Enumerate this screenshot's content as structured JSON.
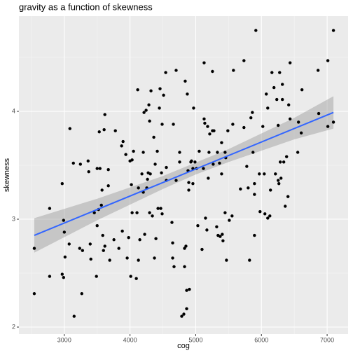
{
  "chart_data": {
    "type": "scatter",
    "title": "gravity as a function of skewness",
    "x_label": "cog",
    "y_label": "skewness",
    "xlim": [
      2309,
      7319
    ],
    "ylim": [
      1.935,
      4.883
    ],
    "xticks": [
      3000,
      4000,
      5000,
      6000,
      7000
    ],
    "yticks": [
      2,
      3,
      4
    ],
    "grid": true,
    "point_color": "#000000",
    "fit": {
      "color": "#3366FF",
      "x": [
        2543,
        7096
      ],
      "y": [
        2.85,
        3.99
      ]
    },
    "band": {
      "color": "#999999",
      "x": [
        2543,
        3500,
        4500,
        5000,
        5500,
        6500,
        7096
      ],
      "lower": [
        2.69,
        2.99,
        3.28,
        3.415,
        3.53,
        3.74,
        3.84
      ],
      "upper": [
        3.01,
        3.19,
        3.4,
        3.525,
        3.65,
        3.94,
        4.14
      ]
    },
    "x": [
      2543,
      2543,
      2777,
      2777,
      2968,
      2989,
      2989,
      3000,
      2968,
      3011,
      3085,
      3074,
      3138,
      3149,
      3234,
      3245,
      3266,
      3277,
      3362,
      3372,
      3394,
      3404,
      3457,
      3489,
      3500,
      3500,
      3532,
      3521,
      3543,
      3564,
      3574,
      3596,
      3606,
      3617,
      3585,
      3617,
      3670,
      3670,
      3691,
      3755,
      3777,
      3830,
      3872,
      3883,
      3894,
      3936,
      3957,
      3979,
      4000,
      4021,
      4011,
      4032,
      4032,
      4053,
      4106,
      4096,
      4128,
      4117,
      4128,
      4149,
      4181,
      4202,
      4202,
      4213,
      4223,
      4245,
      4255,
      4266,
      4277,
      4287,
      4298,
      4298,
      4309,
      4319,
      4340,
      4362,
      4372,
      4383,
      4394,
      4415,
      4426,
      4447,
      4457,
      4468,
      4479,
      4489,
      4489,
      4511,
      4543,
      4553,
      4553,
      4638,
      4649,
      4660,
      4649,
      4670,
      4702,
      4702,
      4755,
      4755,
      4787,
      4819,
      4830,
      4830,
      4840,
      4851,
      4862,
      4872,
      4883,
      4862,
      4894,
      4894,
      4904,
      4926,
      4936,
      4957,
      4957,
      4968,
      4989,
      5011,
      5032,
      5053,
      5096,
      5117,
      5128,
      5128,
      5138,
      5149,
      5170,
      5181,
      5191,
      5202,
      5213,
      5255,
      5255,
      5266,
      5277,
      5319,
      5330,
      5340,
      5362,
      5372,
      5394,
      5394,
      5404,
      5415,
      5447,
      5447,
      5457,
      5468,
      5489,
      5511,
      5553,
      5564,
      5574,
      5681,
      5734,
      5734,
      5777,
      5798,
      5819,
      5840,
      5862,
      5872,
      5894,
      5894,
      5915,
      5894,
      5968,
      5979,
      6021,
      6043,
      6053,
      6074,
      6096,
      6096,
      6128,
      6138,
      6160,
      6191,
      6213,
      6234,
      6255,
      6255,
      6266,
      6277,
      6287,
      6298,
      6319,
      6319,
      6340,
      6362,
      6383,
      6404,
      6415,
      6436,
      6436,
      6553,
      6564,
      6617,
      6606,
      6862,
      6872,
      7011,
      7011,
      7096,
      7096
    ],
    "values": [
      2.31,
      2.73,
      3.1,
      2.47,
      3.33,
      2.99,
      2.46,
      2.88,
      2.49,
      2.65,
      3.84,
      2.77,
      3.52,
      2.1,
      2.73,
      3.51,
      2.31,
      2.71,
      3.54,
      3.44,
      2.77,
      2.63,
      3.06,
      2.47,
      3.47,
      2.94,
      3.81,
      3.09,
      3.47,
      3.13,
      3.27,
      2.71,
      3.83,
      3.97,
      2.85,
      2.75,
      3.46,
      3.31,
      2.62,
      2.81,
      3.82,
      2.73,
      3.68,
      2.89,
      3.72,
      3.6,
      2.64,
      2.83,
      3.54,
      3.32,
      2.47,
      3.55,
      3.06,
      3.63,
      3.06,
      2.45,
      2.62,
      4.2,
      3.29,
      2.81,
      3.42,
      3.25,
      3.62,
      3.99,
      2.86,
      4.01,
      3.29,
      3.37,
      3.43,
      4.06,
      3.91,
      3.06,
      3.42,
      4.19,
      3.03,
      3.76,
      2.64,
      3.51,
      2.82,
      3.63,
      3.1,
      4.03,
      4.21,
      3.1,
      3.43,
      3.88,
      3.05,
      4.15,
      4.36,
      3.48,
      3.36,
      2.97,
      2.78,
      3.88,
      2.64,
      2.56,
      4.38,
      3.36,
      3.62,
      3.53,
      2.1,
      2.12,
      2.73,
      2.56,
      4.28,
      2.75,
      2.17,
      4.16,
      3.45,
      2.34,
      3.27,
      3.34,
      2.35,
      3.53,
      3.54,
      3.47,
      3.33,
      4.03,
      3.53,
      3.47,
      2.94,
      3.63,
      2.72,
      3.47,
      3.93,
      4.45,
      3.89,
      3.01,
      2.9,
      3.86,
      3.38,
      3.62,
      3.79,
      3.82,
      4.37,
      3.51,
      3.82,
      2.93,
      3.62,
      2.85,
      3.52,
      2.84,
      3.71,
      3.42,
      2.86,
      2.8,
      3.62,
      3.06,
      3.57,
      2.62,
      3.82,
      2.99,
      3.03,
      3.88,
      4.38,
      3.28,
      4.47,
      3.85,
      3.49,
      3.29,
      2.62,
      3.94,
      3.99,
      3.62,
      3.33,
      2.85,
      4.75,
      3.23,
      3.42,
      3.07,
      3.86,
      3.42,
      3.05,
      4.16,
      4.03,
      3.01,
      3.03,
      3.27,
      4.36,
      4.22,
      3.42,
      4.11,
      3.87,
      3.36,
      3.33,
      4.36,
      3.53,
      3.38,
      4.25,
      4.11,
      3.53,
      3.12,
      3.58,
      3.21,
      4.06,
      3.93,
      4.45,
      3.62,
      3.9,
      4.2,
      3.8,
      4.38,
      3.98,
      4.47,
      3.86,
      4.75,
      3.9
    ]
  }
}
